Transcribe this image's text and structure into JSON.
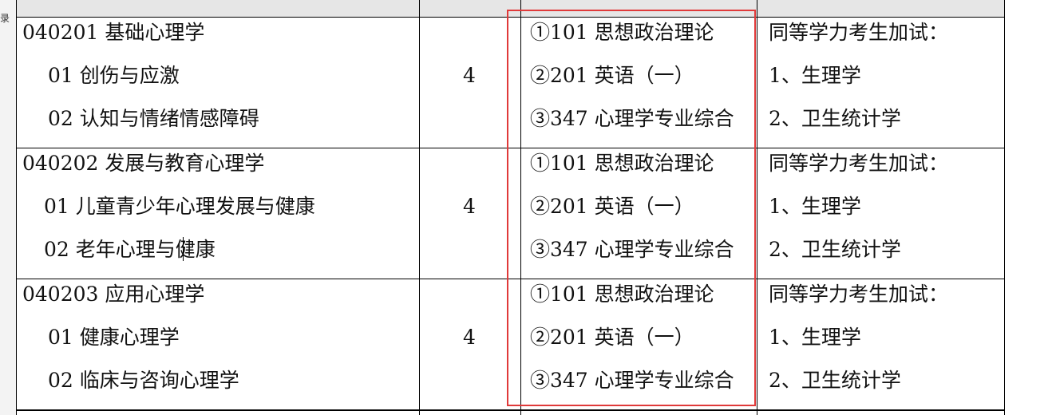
{
  "sidebar": {
    "label": "录"
  },
  "rows": [
    {
      "major": "040201 基础心理学",
      "directions": [
        "01 创伤与应激",
        "02 认知与情绪情感障碍"
      ],
      "count": "4",
      "exams": [
        "①101 思想政治理论",
        "②201 英语（一）",
        "③347 心理学专业综合"
      ],
      "notes": [
        "同等学力考生加试：",
        "1、生理学",
        "2、卫生统计学"
      ]
    },
    {
      "major": "040202 发展与教育心理学",
      "directions": [
        "01 儿童青少年心理发展与健康",
        "02 老年心理与健康"
      ],
      "count": "4",
      "exams": [
        "①101 思想政治理论",
        "②201 英语（一）",
        "③347 心理学专业综合"
      ],
      "notes": [
        "同等学力考生加试：",
        "1、生理学",
        "2、卫生统计学"
      ]
    },
    {
      "major": "040203 应用心理学",
      "directions": [
        "01 健康心理学",
        "02 临床与咨询心理学"
      ],
      "count": "4",
      "exams": [
        "①101 思想政治理论",
        "②201 英语（一）",
        "③347 心理学专业综合"
      ],
      "notes": [
        "同等学力考生加试：",
        "1、生理学",
        "2、卫生统计学"
      ]
    }
  ],
  "highlight_color": "#e03a3a"
}
